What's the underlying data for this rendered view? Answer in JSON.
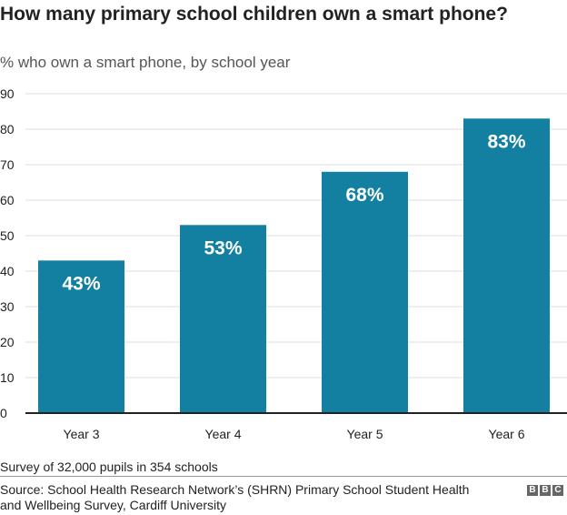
{
  "chart_data": {
    "type": "bar",
    "title": "How many primary school children own a smart phone?",
    "subtitle": "% who own a smart phone, by school year",
    "categories": [
      "Year 3",
      "Year 4",
      "Year 5",
      "Year 6"
    ],
    "values": [
      43,
      53,
      68,
      83
    ],
    "data_labels": [
      "43%",
      "53%",
      "68%",
      "83%"
    ],
    "xlabel": "",
    "ylabel": "",
    "ylim": [
      0,
      90
    ],
    "yticks": [
      0,
      10,
      20,
      30,
      40,
      50,
      60,
      70,
      80,
      90
    ],
    "grid": true,
    "bar_color": "#1380A1"
  },
  "footer": {
    "note": "Survey of 32,000 pupils in 354 schools",
    "source": "Source: School Health Research Network’s (SHRN) Primary School Student Health and Wellbeing Survey, Cardiff University",
    "logo": "BBC"
  }
}
